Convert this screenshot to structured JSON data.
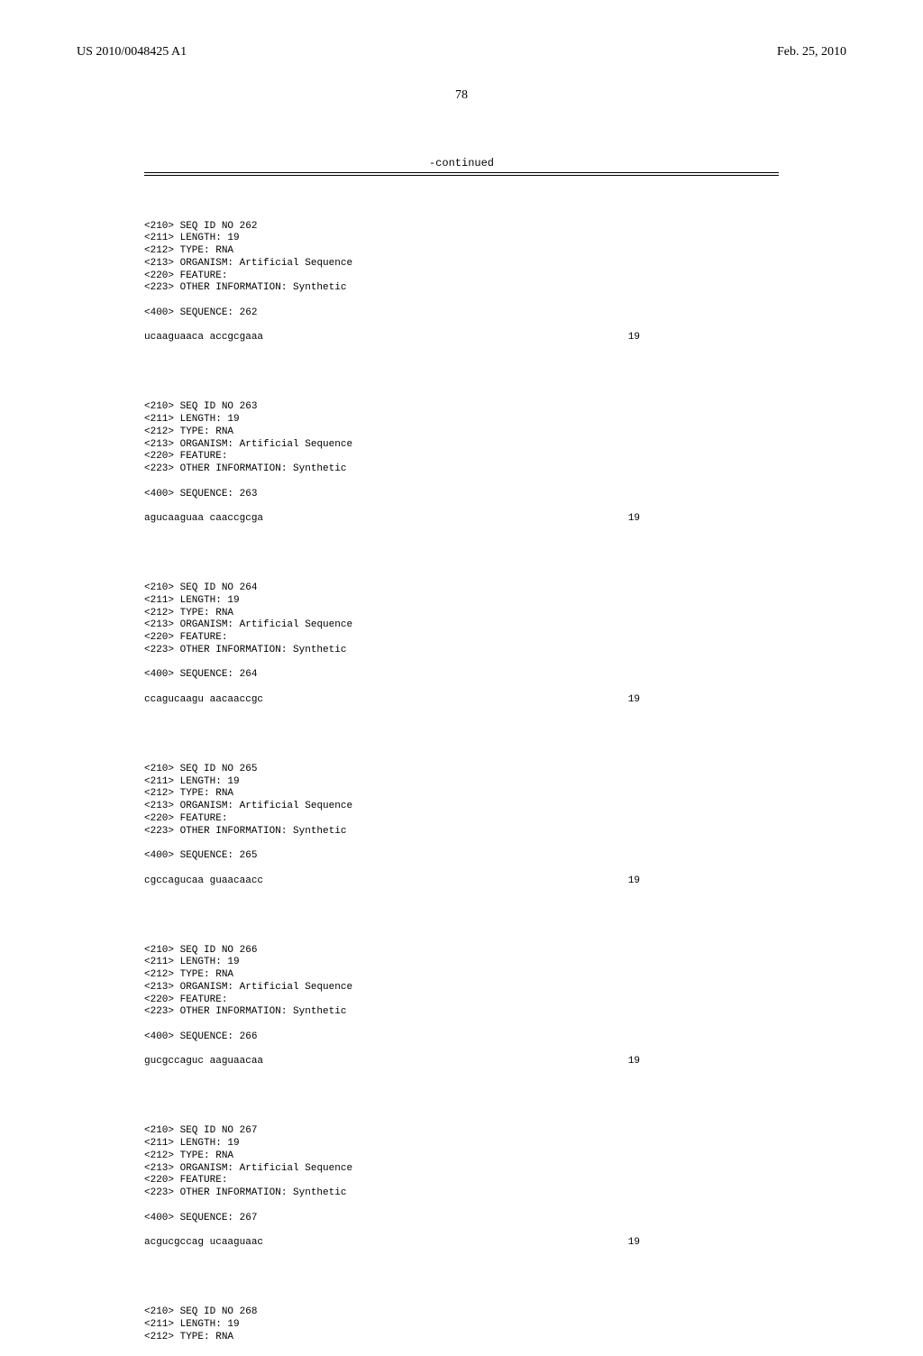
{
  "header": {
    "pub_number": "US 2010/0048425 A1",
    "pub_date": "Feb. 25, 2010",
    "page_number": "78",
    "continued_label": "-continued"
  },
  "entries": [
    {
      "id": "262",
      "length": "19",
      "type": "RNA",
      "organism": "Artificial Sequence",
      "other_info": "Synthetic",
      "sequence_line": "ucaaguaaca accgcgaaa",
      "seq_len": "19"
    },
    {
      "id": "263",
      "length": "19",
      "type": "RNA",
      "organism": "Artificial Sequence",
      "other_info": "Synthetic",
      "sequence_line": "agucaaguaa caaccgcga",
      "seq_len": "19"
    },
    {
      "id": "264",
      "length": "19",
      "type": "RNA",
      "organism": "Artificial Sequence",
      "other_info": "Synthetic",
      "sequence_line": "ccagucaagu aacaaccgc",
      "seq_len": "19"
    },
    {
      "id": "265",
      "length": "19",
      "type": "RNA",
      "organism": "Artificial Sequence",
      "other_info": "Synthetic",
      "sequence_line": "cgccagucaa guaacaacc",
      "seq_len": "19"
    },
    {
      "id": "266",
      "length": "19",
      "type": "RNA",
      "organism": "Artificial Sequence",
      "other_info": "Synthetic",
      "sequence_line": "gucgccaguc aaguaacaa",
      "seq_len": "19"
    },
    {
      "id": "267",
      "length": "19",
      "type": "RNA",
      "organism": "Artificial Sequence",
      "other_info": "Synthetic",
      "sequence_line": "acgucgccag ucaaguaac",
      "seq_len": "19"
    }
  ],
  "trailing": {
    "id": "268",
    "length": "19",
    "type": "RNA"
  },
  "labels": {
    "seq_id": "<210> SEQ ID NO ",
    "length": "<211> LENGTH: ",
    "type": "<212> TYPE: ",
    "organism": "<213> ORGANISM: ",
    "feature": "<220> FEATURE:",
    "other_info": "<223> OTHER INFORMATION: ",
    "sequence": "<400> SEQUENCE: "
  }
}
